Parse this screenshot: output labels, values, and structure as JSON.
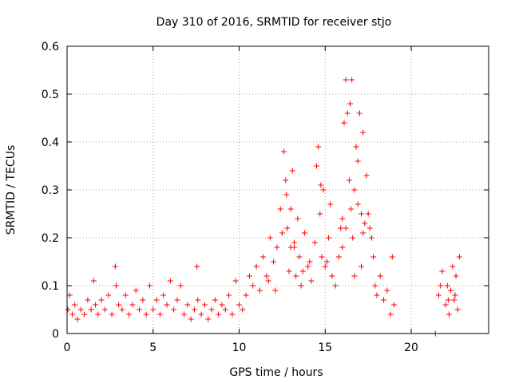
{
  "chart_data": {
    "type": "scatter",
    "title": "Day 310 of 2016, SRMTID for receiver stjo",
    "xlabel": "GPS time / hours",
    "ylabel": "SRMTID / TECUs",
    "xlim": [
      0,
      24.5
    ],
    "ylim": [
      0,
      0.6
    ],
    "x_ticks": [
      0,
      5,
      10,
      15,
      20
    ],
    "y_ticks": [
      0,
      0.1,
      0.2,
      0.3,
      0.4,
      0.5,
      0.6
    ],
    "y_tick_labels": [
      "0",
      "0.1",
      "0.2",
      "0.3",
      "0.4",
      "0.5",
      "0.6"
    ],
    "grid": true,
    "marker": "+",
    "color": "#ff0000",
    "series": [
      {
        "name": "SRMTID",
        "x": [
          0.05,
          0.15,
          0.3,
          0.45,
          0.6,
          0.8,
          1.0,
          1.2,
          1.4,
          1.55,
          1.65,
          1.8,
          2.0,
          2.2,
          2.4,
          2.6,
          2.8,
          2.85,
          3.0,
          3.2,
          3.4,
          3.6,
          3.8,
          4.0,
          4.2,
          4.4,
          4.6,
          4.8,
          5.0,
          5.2,
          5.4,
          5.6,
          5.8,
          6.0,
          6.2,
          6.4,
          6.6,
          6.8,
          7.0,
          7.2,
          7.4,
          7.6,
          7.8,
          7.55,
          8.0,
          8.2,
          8.4,
          8.6,
          8.8,
          9.0,
          9.2,
          9.4,
          9.6,
          9.8,
          10.0,
          10.2,
          10.4,
          10.6,
          10.8,
          11.0,
          11.2,
          11.4,
          11.6,
          11.8,
          12.0,
          12.2,
          12.4,
          12.6,
          12.7,
          12.8,
          12.9,
          13.0,
          13.1,
          13.2,
          13.3,
          13.4,
          13.5,
          13.6,
          13.8,
          14.0,
          14.2,
          14.4,
          14.5,
          14.6,
          14.7,
          14.8,
          15.0,
          15.2,
          15.4,
          15.6,
          15.8,
          16.0,
          16.1,
          16.2,
          16.3,
          16.4,
          16.5,
          16.6,
          16.7,
          16.8,
          17.0,
          17.2,
          17.4,
          17.5,
          17.6,
          17.7,
          17.8,
          17.9,
          18.0,
          18.2,
          18.4,
          18.6,
          18.8,
          18.9,
          19.0,
          12.5,
          13.2,
          14.1,
          15.9,
          16.9,
          17.3,
          12.1,
          11.7,
          13.7,
          15.1,
          16.0,
          17.1,
          14.9,
          16.45,
          16.55,
          16.7,
          16.9,
          17.1,
          17.2,
          12.75,
          13.0,
          14.75,
          15.3,
          16.2,
          21.4,
          21.6,
          21.8,
          22.0,
          22.1,
          22.2,
          22.3,
          22.4,
          22.5,
          22.6,
          22.7,
          22.8,
          21.7,
          22.15,
          22.55
        ],
        "y": [
          0.05,
          0.08,
          0.04,
          0.06,
          0.03,
          0.05,
          0.04,
          0.07,
          0.05,
          0.11,
          0.06,
          0.04,
          0.07,
          0.05,
          0.08,
          0.04,
          0.14,
          0.1,
          0.06,
          0.05,
          0.08,
          0.04,
          0.06,
          0.09,
          0.05,
          0.07,
          0.04,
          0.1,
          0.05,
          0.07,
          0.04,
          0.08,
          0.06,
          0.11,
          0.05,
          0.07,
          0.1,
          0.04,
          0.06,
          0.03,
          0.05,
          0.07,
          0.04,
          0.14,
          0.06,
          0.03,
          0.05,
          0.07,
          0.04,
          0.06,
          0.05,
          0.08,
          0.04,
          0.11,
          0.06,
          0.05,
          0.08,
          0.12,
          0.1,
          0.14,
          0.09,
          0.16,
          0.12,
          0.2,
          0.15,
          0.18,
          0.26,
          0.38,
          0.32,
          0.22,
          0.13,
          0.26,
          0.34,
          0.18,
          0.12,
          0.24,
          0.16,
          0.1,
          0.21,
          0.14,
          0.11,
          0.19,
          0.35,
          0.39,
          0.25,
          0.16,
          0.14,
          0.2,
          0.12,
          0.1,
          0.16,
          0.24,
          0.44,
          0.53,
          0.46,
          0.32,
          0.26,
          0.2,
          0.12,
          0.39,
          0.46,
          0.42,
          0.33,
          0.25,
          0.22,
          0.2,
          0.16,
          0.1,
          0.08,
          0.12,
          0.07,
          0.09,
          0.04,
          0.16,
          0.06,
          0.21,
          0.19,
          0.15,
          0.22,
          0.27,
          0.23,
          0.09,
          0.11,
          0.13,
          0.15,
          0.18,
          0.14,
          0.3,
          0.48,
          0.53,
          0.3,
          0.36,
          0.25,
          0.21,
          0.29,
          0.18,
          0.31,
          0.27,
          0.22,
          0.0,
          0.08,
          0.13,
          0.06,
          0.1,
          0.04,
          0.09,
          0.14,
          0.07,
          0.12,
          0.05,
          0.16,
          0.1,
          0.07,
          0.08
        ]
      }
    ]
  }
}
